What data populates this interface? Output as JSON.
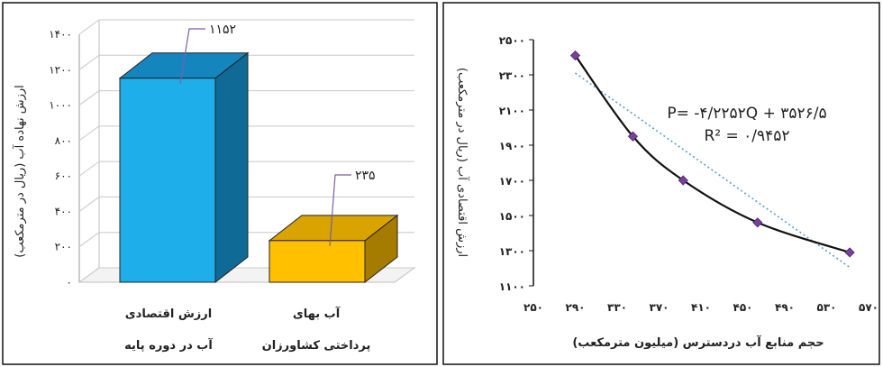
{
  "chart_data": [
    {
      "type": "bar",
      "style": "3d",
      "categories": [
        {
          "line1": "ارزش اقتصادی",
          "line2": "آب در دوره پایه"
        },
        {
          "line1": "آب بهای",
          "line2": "پرداختی کشاورزان"
        }
      ],
      "values": [
        1152,
        235
      ],
      "data_labels": [
        "۱۱۵۲",
        "۲۳۵"
      ],
      "colors": {
        "front": [
          "#1EAEEA",
          "#FFC000"
        ],
        "top": [
          "#1585BE",
          "#D9A300"
        ],
        "side": [
          "#0F6A95",
          "#A67C00"
        ]
      },
      "ylabel": "ارزش نهاده آب (ریال در مترمکعب)",
      "ylim": [
        0,
        1400
      ],
      "yticks": [
        {
          "v": 0,
          "label": "۰"
        },
        {
          "v": 200,
          "label": "۲۰۰"
        },
        {
          "v": 400,
          "label": "۴۰۰"
        },
        {
          "v": 600,
          "label": "۶۰۰"
        },
        {
          "v": 800,
          "label": "۸۰۰"
        },
        {
          "v": 1000,
          "label": "۱۰۰۰"
        },
        {
          "v": 1200,
          "label": "۱۲۰۰"
        },
        {
          "v": 1400,
          "label": "۱۴۰۰"
        }
      ],
      "grid": true
    },
    {
      "type": "line",
      "x": [
        290,
        345,
        393,
        464,
        552
      ],
      "y": [
        2410,
        1950,
        1700,
        1460,
        1290
      ],
      "trendline": {
        "x": [
          290,
          552
        ],
        "y": [
          2310,
          1205
        ],
        "color": "#5B9BD5",
        "dash": true
      },
      "equation": "P= -۴/۲۲۵۲Q + ۳۵۲۶/۵",
      "r2": "R² = ۰/۹۴۵۲",
      "xlabel": "حجم منابع آب دردسترس (میلیون مترمکعب)",
      "ylabel": "ارزش اقتصادی آب (ریال در مترمکعب)",
      "xlim": [
        250,
        570
      ],
      "ylim": [
        1100,
        2500
      ],
      "xticks": [
        {
          "v": 250,
          "label": "۲۵۰"
        },
        {
          "v": 290,
          "label": "۲۹۰"
        },
        {
          "v": 330,
          "label": "۳۳۰"
        },
        {
          "v": 370,
          "label": "۳۷۰"
        },
        {
          "v": 410,
          "label": "۴۱۰"
        },
        {
          "v": 450,
          "label": "۴۵۰"
        },
        {
          "v": 490,
          "label": "۴۹۰"
        },
        {
          "v": 530,
          "label": "۵۳۰"
        },
        {
          "v": 570,
          "label": "۵۷۰"
        }
      ],
      "yticks": [
        {
          "v": 1100,
          "label": "۱۱۰۰"
        },
        {
          "v": 1300,
          "label": "۱۳۰۰"
        },
        {
          "v": 1500,
          "label": "۱۵۰۰"
        },
        {
          "v": 1700,
          "label": "۱۷۰۰"
        },
        {
          "v": 1900,
          "label": "۱۹۰۰"
        },
        {
          "v": 2100,
          "label": "۲۱۰۰"
        },
        {
          "v": 2300,
          "label": "۲۳۰۰"
        },
        {
          "v": 2500,
          "label": "۲۵۰۰"
        }
      ],
      "line_color": "#111111",
      "marker_color": "#7B3F9E",
      "grid": false
    }
  ]
}
